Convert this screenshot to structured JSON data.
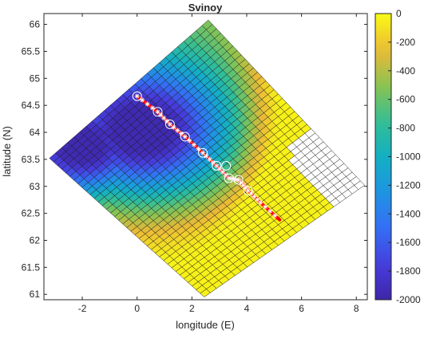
{
  "chart_data": {
    "type": "heatmap",
    "title": "Svinoy",
    "xlabel": "longitude (E)",
    "ylabel": "latitude (N)",
    "xlim": [
      -3.4,
      8.4
    ],
    "ylim": [
      60.9,
      66.2
    ],
    "xticks": [
      -2,
      0,
      2,
      4,
      6,
      8
    ],
    "yticks": [
      61,
      61.5,
      62,
      62.5,
      63,
      63.5,
      64,
      64.5,
      65,
      65.5,
      66
    ],
    "colorbar": {
      "min": -2000,
      "max": 0,
      "ticks": [
        0,
        -200,
        -400,
        -600,
        -800,
        -1000,
        -1200,
        -1400,
        -1600,
        -1800,
        -2000
      ],
      "colormap": "parula"
    },
    "grid": {
      "corners": {
        "west": [
          -3.2,
          63.52
        ],
        "north": [
          2.6,
          66.08
        ],
        "east": [
          8.3,
          63.02
        ],
        "south": [
          2.45,
          60.95
        ]
      },
      "cells_along": 26,
      "cells_across": 38,
      "masked_land_note": "white cells along east edge"
    },
    "section": {
      "color": "#ff0000",
      "points": [
        {
          "lon": 0.0,
          "lat": 64.67
        },
        {
          "lon": 0.75,
          "lat": 64.38
        },
        {
          "lon": 1.2,
          "lat": 64.15
        },
        {
          "lon": 1.75,
          "lat": 63.92
        },
        {
          "lon": 2.4,
          "lat": 63.62
        },
        {
          "lon": 2.9,
          "lat": 63.38
        },
        {
          "lon": 3.35,
          "lat": 63.15
        },
        {
          "lon": 3.7,
          "lat": 63.12
        },
        {
          "lon": 4.05,
          "lat": 62.92
        },
        {
          "lon": 4.5,
          "lat": 62.7
        },
        {
          "lon": 5.2,
          "lat": 62.38
        }
      ],
      "circled_stations": [
        {
          "lon": 0.0,
          "lat": 64.67
        },
        {
          "lon": 0.75,
          "lat": 64.38
        },
        {
          "lon": 1.2,
          "lat": 64.15
        },
        {
          "lon": 1.75,
          "lat": 63.92
        },
        {
          "lon": 2.4,
          "lat": 63.62
        },
        {
          "lon": 2.9,
          "lat": 63.38
        },
        {
          "lon": 3.25,
          "lat": 63.38
        },
        {
          "lon": 3.35,
          "lat": 63.15
        },
        {
          "lon": 3.7,
          "lat": 63.12
        },
        {
          "lon": 4.05,
          "lat": 62.92
        }
      ]
    }
  }
}
